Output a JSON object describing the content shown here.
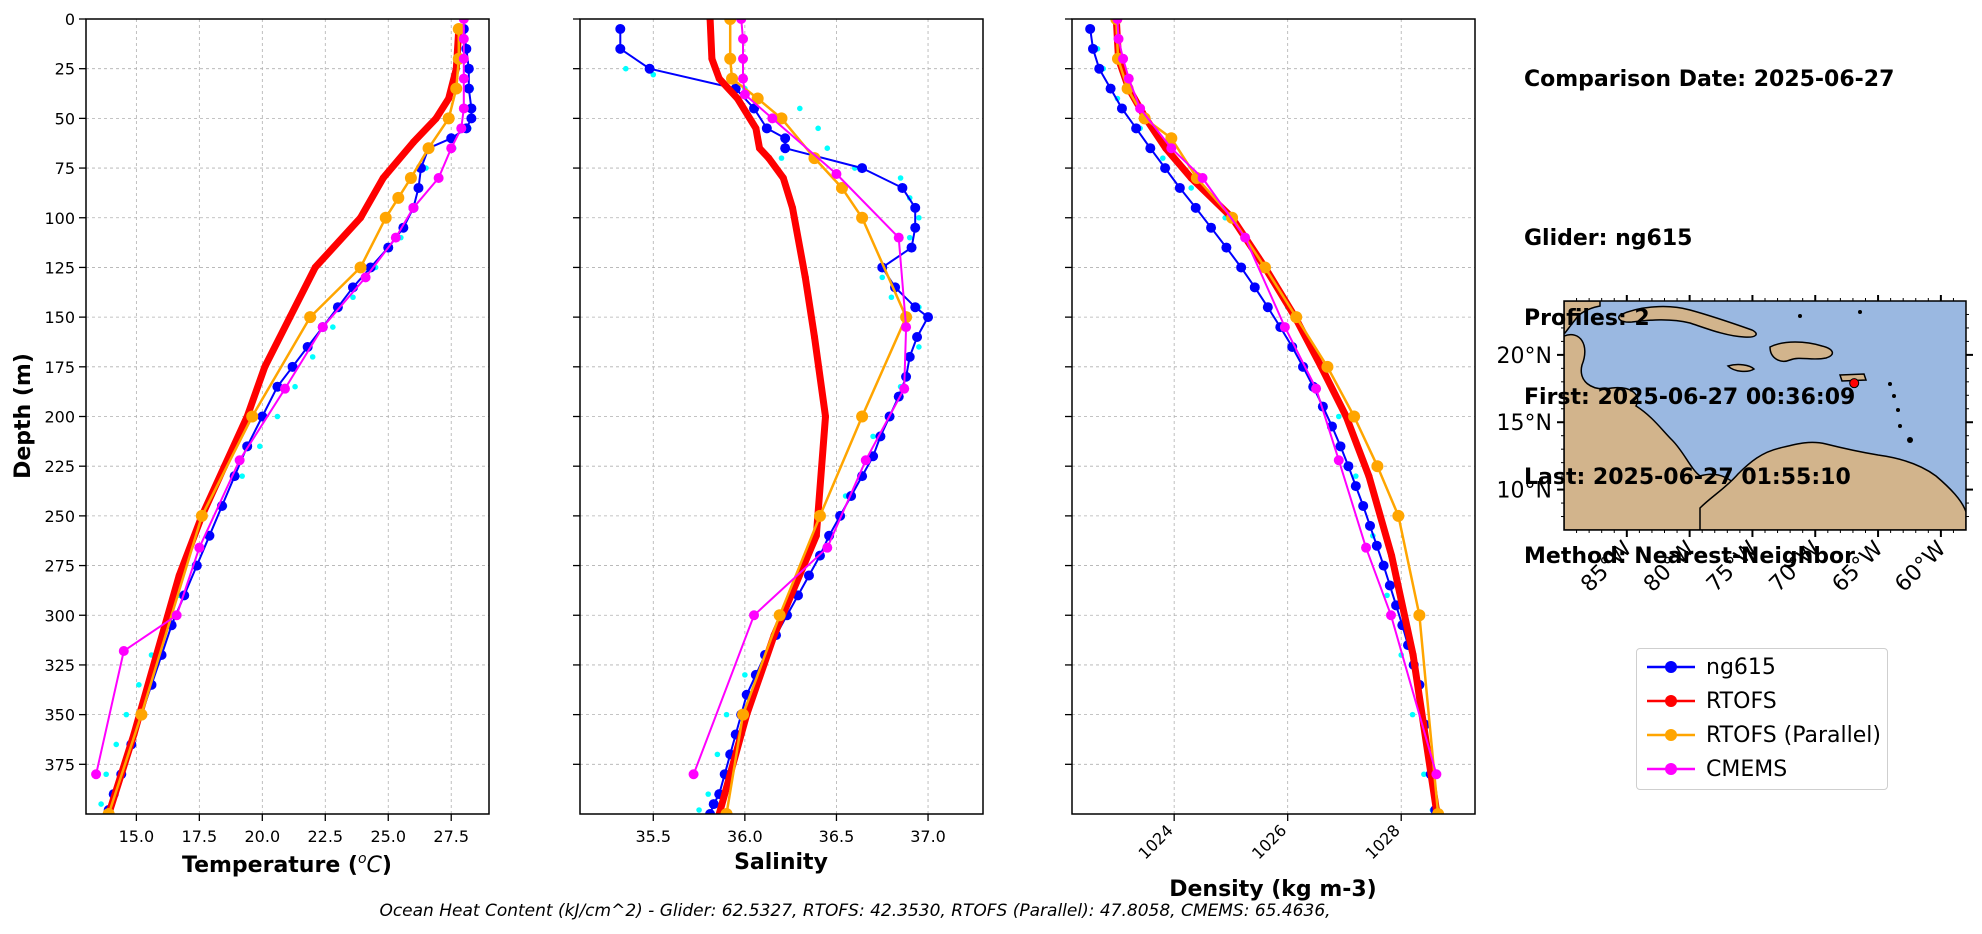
{
  "info": {
    "comparison_date": "Comparison Date: 2025-06-27",
    "glider": "Glider: ng615",
    "profiles": "Profiles: 2",
    "first": "First: 2025-06-27 00:36:09",
    "last": "Last: 2025-06-27 01:55:10",
    "method": "Method: Nearest-Neighbor"
  },
  "footer": "Ocean Heat Content (kJ/cm^2) - Glider: 62.5327,  RTOFS: 42.3530,  RTOFS (Parallel): 47.8058,  CMEMS: 65.4636,",
  "colors": {
    "ng615": "#0000ff",
    "ng615_raw": "#00ffff",
    "RTOFS": "#ff0000",
    "RTOFS (Parallel)": "#ffa500",
    "CMEMS": "#ff00ff",
    "ocean": "#9ab8e1",
    "land": "#d2b48c"
  },
  "legend": [
    {
      "name": "ng615",
      "color": "#0000ff"
    },
    {
      "name": "RTOFS",
      "color": "#ff0000"
    },
    {
      "name": "RTOFS (Parallel)",
      "color": "#ffa500"
    },
    {
      "name": "CMEMS",
      "color": "#ff00ff"
    }
  ],
  "map": {
    "lon_range": [
      -90,
      -58
    ],
    "lat_range": [
      7,
      24
    ],
    "lon_ticks": [
      -85,
      -80,
      -75,
      -70,
      -65,
      -60
    ],
    "lon_tick_labels": [
      "85°W",
      "80°W",
      "75°W",
      "70°W",
      "65°W",
      "60°W"
    ],
    "lat_ticks": [
      20,
      15,
      10
    ],
    "lat_tick_labels": [
      "20°N",
      "15°N",
      "10°N"
    ],
    "glider_location": {
      "lon": -66.9,
      "lat": 17.9
    }
  },
  "chart_data": [
    {
      "type": "line",
      "xlabel": "Temperature ($^{o}C$)",
      "xlabel_text": "Temperature (",
      "xlabel_sup": "o",
      "xlabel_unit": "C",
      "xlabel_close": ")",
      "ylabel": "Depth (m)",
      "xlim": [
        13,
        29
      ],
      "ylim": [
        400,
        0
      ],
      "xticks": [
        15.0,
        17.5,
        20.0,
        22.5,
        25.0,
        27.5
      ],
      "xtick_labels": [
        "15.0",
        "17.5",
        "20.0",
        "22.5",
        "25.0",
        "27.5"
      ],
      "yticks": [
        0,
        25,
        50,
        75,
        100,
        125,
        150,
        175,
        200,
        225,
        250,
        275,
        300,
        325,
        350,
        375
      ],
      "ytick_labels": [
        "0",
        "25",
        "50",
        "75",
        "100",
        "125",
        "150",
        "175",
        "200",
        "225",
        "250",
        "275",
        "300",
        "325",
        "350",
        "375"
      ],
      "grid": true,
      "series": [
        {
          "name": "ng615 raw",
          "color_key": "ng615_raw",
          "x": [
            28.0,
            28.1,
            28.2,
            28.3,
            28.3,
            28.2,
            27.6,
            26.5,
            26.2,
            26.0,
            25.5,
            24.5,
            23.6,
            22.8,
            22.0,
            21.3,
            20.6,
            19.9,
            19.2,
            18.5,
            17.9,
            17.3,
            16.7,
            16.1,
            15.6,
            15.1,
            14.6,
            14.2,
            13.8,
            13.6
          ],
          "y": [
            5,
            15,
            25,
            35,
            45,
            55,
            65,
            75,
            85,
            95,
            110,
            125,
            140,
            155,
            170,
            185,
            200,
            215,
            230,
            245,
            260,
            275,
            290,
            305,
            320,
            335,
            350,
            365,
            380,
            395
          ]
        },
        {
          "name": "ng615",
          "color_key": "ng615",
          "x": [
            28.0,
            28.1,
            28.2,
            28.2,
            28.3,
            28.3,
            28.1,
            27.5,
            26.6,
            26.3,
            26.2,
            26.0,
            25.6,
            25.0,
            24.3,
            23.6,
            23.0,
            22.4,
            21.8,
            21.2,
            20.6,
            20.0,
            19.4,
            18.9,
            18.4,
            17.9,
            17.4,
            16.9,
            16.4,
            16.0,
            15.6,
            15.2,
            14.8,
            14.4,
            14.1,
            13.9
          ],
          "y": [
            5,
            15,
            25,
            35,
            45,
            50,
            55,
            60,
            65,
            75,
            85,
            95,
            105,
            115,
            125,
            135,
            145,
            155,
            165,
            175,
            185,
            200,
            215,
            230,
            245,
            260,
            275,
            290,
            305,
            320,
            335,
            350,
            365,
            380,
            390,
            398
          ]
        },
        {
          "name": "RTOFS",
          "color_key": "RTOFS",
          "x": [
            27.8,
            27.7,
            27.4,
            26.9,
            26.0,
            24.8,
            23.9,
            22.1,
            21.1,
            20.1,
            19.4,
            18.5,
            17.6,
            16.7,
            15.8,
            14.9,
            13.9
          ],
          "y": [
            5,
            25,
            40,
            50,
            62,
            80,
            100,
            125,
            150,
            175,
            200,
            225,
            250,
            280,
            320,
            360,
            400
          ]
        },
        {
          "name": "RTOFS (Parallel)",
          "color_key": "RTOFS (Parallel)",
          "x": [
            27.8,
            27.8,
            27.7,
            27.4,
            26.6,
            25.9,
            25.4,
            24.9,
            23.9,
            21.9,
            19.6,
            17.6,
            15.2,
            13.9
          ],
          "y": [
            5,
            20,
            35,
            50,
            65,
            80,
            90,
            100,
            125,
            150,
            200,
            250,
            350,
            400
          ]
        },
        {
          "name": "CMEMS",
          "color_key": "CMEMS",
          "x": [
            28.0,
            28.0,
            28.0,
            28.0,
            28.0,
            27.9,
            27.5,
            27.0,
            26.0,
            25.3,
            24.1,
            22.4,
            20.9,
            19.1,
            17.5,
            16.6,
            14.5,
            13.4
          ],
          "y": [
            0,
            10,
            20,
            30,
            45,
            55,
            65,
            80,
            95,
            110,
            130,
            155,
            186,
            222,
            266,
            300,
            318,
            380
          ]
        }
      ]
    },
    {
      "type": "line",
      "xlabel": "Salinity",
      "xlim": [
        35.1,
        37.3
      ],
      "ylim": [
        400,
        0
      ],
      "xticks": [
        35.5,
        36.0,
        36.5,
        37.0
      ],
      "xtick_labels": [
        "35.5",
        "36.0",
        "36.5",
        "37.0"
      ],
      "grid": true,
      "series": [
        {
          "name": "ng615 raw",
          "color_key": "ng615_raw",
          "x": [
            35.32,
            35.33,
            35.35,
            35.5,
            36.0,
            36.3,
            36.4,
            36.45,
            36.2,
            36.6,
            36.85,
            36.9,
            36.95,
            36.9,
            36.75,
            36.8,
            36.95,
            37.0,
            36.95,
            36.85,
            36.7,
            36.55,
            36.4,
            36.2,
            36.0,
            35.9,
            35.85,
            35.8,
            35.75
          ],
          "y": [
            5,
            15,
            25,
            28,
            35,
            45,
            55,
            65,
            70,
            75,
            80,
            90,
            100,
            110,
            130,
            140,
            145,
            150,
            165,
            185,
            210,
            240,
            270,
            300,
            330,
            350,
            370,
            390,
            398
          ]
        },
        {
          "name": "ng615",
          "color_key": "ng615",
          "x": [
            35.32,
            35.32,
            35.48,
            35.95,
            36.05,
            36.12,
            36.22,
            36.22,
            36.64,
            36.86,
            36.93,
            36.93,
            36.91,
            36.75,
            36.82,
            36.93,
            37.0,
            36.94,
            36.9,
            36.88,
            36.84,
            36.79,
            36.74,
            36.7,
            36.64,
            36.58,
            36.52,
            36.46,
            36.41,
            36.35,
            36.29,
            36.23,
            36.17,
            36.11,
            36.06,
            36.01,
            35.98,
            35.95,
            35.92,
            35.89,
            35.86,
            35.83,
            35.81
          ],
          "y": [
            5,
            15,
            25,
            35,
            45,
            55,
            60,
            65,
            75,
            85,
            95,
            105,
            115,
            125,
            135,
            145,
            150,
            160,
            170,
            180,
            190,
            200,
            210,
            220,
            230,
            240,
            250,
            260,
            270,
            280,
            290,
            300,
            310,
            320,
            330,
            340,
            350,
            360,
            370,
            380,
            390,
            395,
            400
          ]
        },
        {
          "name": "RTOFS",
          "color_key": "RTOFS",
          "x": [
            35.81,
            35.82,
            35.86,
            35.96,
            36.06,
            36.08,
            36.13,
            36.21,
            36.26,
            36.33,
            36.38,
            36.44,
            36.39,
            36.16,
            36.01,
            35.86
          ],
          "y": [
            0,
            20,
            30,
            40,
            55,
            65,
            70,
            80,
            95,
            130,
            160,
            200,
            260,
            310,
            350,
            400
          ]
        },
        {
          "name": "RTOFS (Parallel)",
          "color_key": "RTOFS (Parallel)",
          "x": [
            35.92,
            35.92,
            35.93,
            36.07,
            36.2,
            36.38,
            36.53,
            36.64,
            36.88,
            36.64,
            36.41,
            36.19,
            35.99,
            35.9
          ],
          "y": [
            0,
            20,
            30,
            40,
            50,
            70,
            85,
            100,
            150,
            200,
            250,
            300,
            350,
            400
          ]
        },
        {
          "name": "CMEMS",
          "color_key": "CMEMS",
          "x": [
            35.98,
            35.99,
            35.99,
            35.99,
            36.0,
            36.15,
            36.5,
            36.84,
            36.88,
            36.87,
            36.66,
            36.45,
            36.05,
            35.72
          ],
          "y": [
            0,
            10,
            20,
            30,
            38,
            50,
            78,
            110,
            155,
            186,
            222,
            266,
            300,
            380
          ]
        }
      ]
    },
    {
      "type": "line",
      "xlabel": "Density (kg m-3)",
      "xlim": [
        1022.2,
        1029.3
      ],
      "ylim": [
        400,
        0
      ],
      "xticks": [
        1024,
        1026,
        1028
      ],
      "xtick_labels": [
        "1024",
        "1026",
        "1028"
      ],
      "grid": true,
      "series": [
        {
          "name": "ng615 raw",
          "color_key": "ng615_raw",
          "x": [
            1022.55,
            1022.65,
            1022.75,
            1023.0,
            1023.4,
            1023.8,
            1024.3,
            1024.9,
            1025.5,
            1026.0,
            1026.5,
            1026.9,
            1027.2,
            1027.5,
            1027.75,
            1028.0,
            1028.2,
            1028.4,
            1028.55
          ],
          "y": [
            5,
            15,
            25,
            40,
            55,
            70,
            85,
            100,
            120,
            145,
            170,
            200,
            230,
            260,
            290,
            320,
            350,
            380,
            398
          ]
        },
        {
          "name": "ng615",
          "color_key": "ng615",
          "x": [
            1022.52,
            1022.57,
            1022.68,
            1022.88,
            1023.08,
            1023.33,
            1023.58,
            1023.84,
            1024.1,
            1024.38,
            1024.65,
            1024.92,
            1025.18,
            1025.42,
            1025.65,
            1025.87,
            1026.08,
            1026.27,
            1026.45,
            1026.62,
            1026.78,
            1026.93,
            1027.07,
            1027.2,
            1027.33,
            1027.45,
            1027.57,
            1027.69,
            1027.8,
            1027.91,
            1028.02,
            1028.12,
            1028.22,
            1028.32,
            1028.42,
            1028.52,
            1028.6
          ],
          "y": [
            5,
            15,
            25,
            35,
            45,
            55,
            65,
            75,
            85,
            95,
            105,
            115,
            125,
            135,
            145,
            155,
            165,
            175,
            185,
            195,
            205,
            215,
            225,
            235,
            245,
            255,
            265,
            275,
            285,
            295,
            305,
            315,
            325,
            335,
            355,
            380,
            398
          ]
        },
        {
          "name": "RTOFS",
          "color_key": "RTOFS",
          "x": [
            1022.98,
            1023.02,
            1023.2,
            1023.5,
            1023.85,
            1024.3,
            1025.02,
            1025.6,
            1026.13,
            1026.59,
            1027.03,
            1027.43,
            1027.83,
            1028.21,
            1028.63
          ],
          "y": [
            0,
            20,
            35,
            50,
            65,
            80,
            100,
            125,
            150,
            175,
            200,
            230,
            270,
            320,
            400
          ]
        },
        {
          "name": "RTOFS (Parallel)",
          "color_key": "RTOFS (Parallel)",
          "x": [
            1022.98,
            1023.01,
            1023.18,
            1023.48,
            1023.95,
            1024.4,
            1025.02,
            1025.6,
            1026.15,
            1026.7,
            1027.17,
            1027.58,
            1027.95,
            1028.32,
            1028.65
          ],
          "y": [
            0,
            20,
            35,
            50,
            60,
            80,
            100,
            125,
            150,
            175,
            200,
            225,
            250,
            300,
            400
          ]
        },
        {
          "name": "CMEMS",
          "color_key": "CMEMS",
          "x": [
            1023.0,
            1023.02,
            1023.1,
            1023.2,
            1023.4,
            1023.95,
            1024.5,
            1025.25,
            1025.95,
            1026.5,
            1026.9,
            1027.38,
            1027.82,
            1028.62
          ],
          "y": [
            0,
            10,
            20,
            30,
            45,
            65,
            80,
            110,
            155,
            186,
            222,
            266,
            300,
            380
          ]
        }
      ]
    }
  ]
}
